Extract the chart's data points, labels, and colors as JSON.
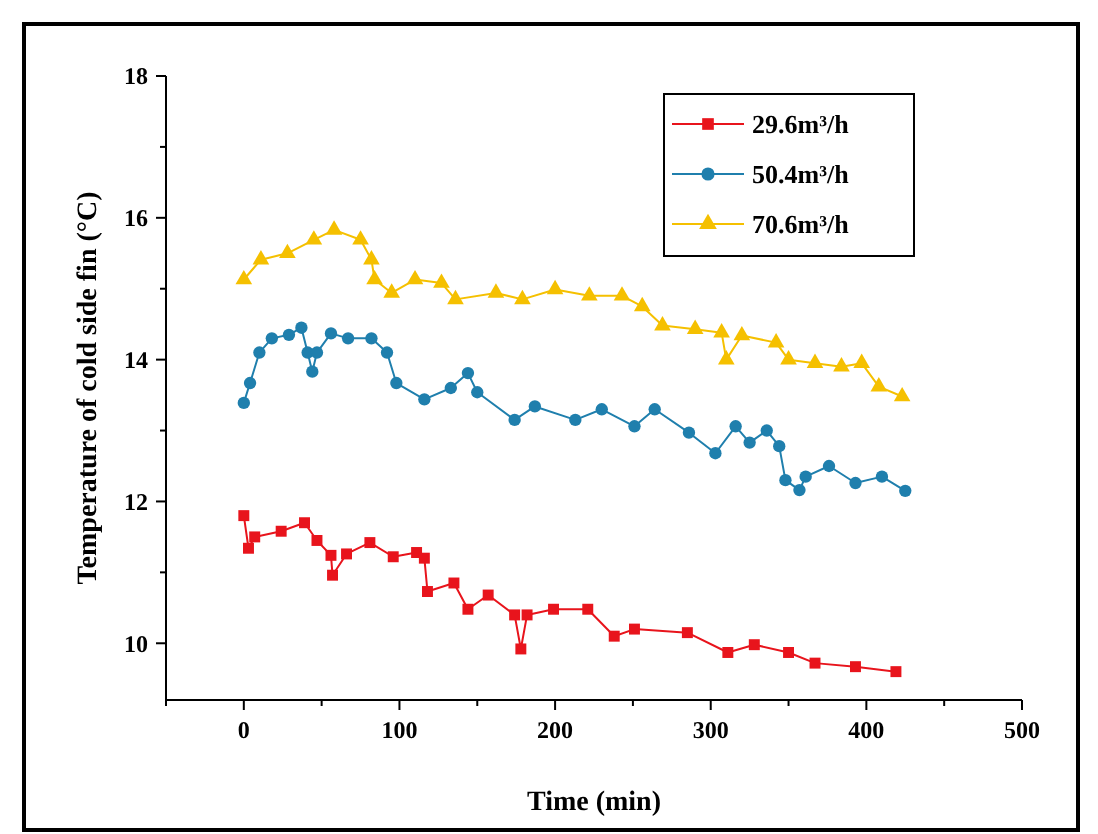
{
  "chart_data": {
    "type": "line",
    "xlabel": "Time (min)",
    "ylabel": "Temperature of cold side fin (°C)",
    "xlim": [
      -50,
      500
    ],
    "ylim": [
      9.2,
      18
    ],
    "xticks": [
      {
        "value": -50,
        "label": null
      },
      0,
      {
        "value": 50,
        "label": null
      },
      100,
      {
        "value": 150,
        "label": null
      },
      200,
      {
        "value": 250,
        "label": null
      },
      300,
      {
        "value": 350,
        "label": null
      },
      400,
      {
        "value": 450,
        "label": null
      },
      500
    ],
    "yticks": [
      10,
      {
        "value": 11,
        "label": null
      },
      12,
      {
        "value": 13,
        "label": null
      },
      14,
      {
        "value": 15,
        "label": null
      },
      16,
      {
        "value": 17,
        "label": null
      },
      18
    ],
    "grid": false,
    "legend": "top right",
    "line_style": "solid",
    "series": [
      {
        "name": "29.6m³/h",
        "color": "#e8141c",
        "marker": "square",
        "x": [
          0,
          3,
          7,
          24,
          39,
          47,
          56,
          57,
          66,
          81,
          96,
          111,
          116,
          118,
          135,
          144,
          157,
          174,
          178,
          182,
          199,
          221,
          238,
          251,
          285,
          311,
          328,
          350,
          367,
          393,
          419
        ],
        "values": [
          11.8,
          11.34,
          11.5,
          11.58,
          11.7,
          11.45,
          11.24,
          10.96,
          11.26,
          11.42,
          11.22,
          11.28,
          11.2,
          10.73,
          10.85,
          10.48,
          10.68,
          10.4,
          9.92,
          10.4,
          10.48,
          10.48,
          10.1,
          10.2,
          10.15,
          9.87,
          9.98,
          9.87,
          9.72,
          9.67,
          9.6
        ]
      },
      {
        "name": "50.4m³/h",
        "color": "#1f7fad",
        "marker": "circle",
        "x": [
          0,
          4,
          10,
          18,
          29,
          37,
          41,
          44,
          47,
          56,
          67,
          82,
          92,
          98,
          116,
          133,
          144,
          150,
          174,
          187,
          213,
          230,
          251,
          264,
          286,
          303,
          316,
          325,
          336,
          344,
          348,
          357,
          361,
          376,
          393,
          410,
          425
        ],
        "values": [
          13.39,
          13.67,
          14.1,
          14.3,
          14.35,
          14.45,
          14.1,
          13.83,
          14.1,
          14.37,
          14.3,
          14.3,
          14.1,
          13.67,
          13.44,
          13.6,
          13.81,
          13.54,
          13.15,
          13.34,
          13.15,
          13.3,
          13.06,
          13.3,
          12.97,
          12.68,
          13.06,
          12.83,
          13.0,
          12.78,
          12.3,
          12.16,
          12.35,
          12.5,
          12.26,
          12.35,
          12.15
        ]
      },
      {
        "name": "70.6m³/h",
        "color": "#f5c000",
        "marker": "triangle",
        "x": [
          0,
          11,
          28,
          45,
          58,
          75,
          82,
          84,
          95,
          110,
          127,
          136,
          162,
          179,
          200,
          222,
          243,
          256,
          269,
          290,
          307,
          310,
          320,
          342,
          350,
          367,
          384,
          397,
          408,
          423
        ],
        "values": [
          15.13,
          15.41,
          15.5,
          15.69,
          15.83,
          15.69,
          15.41,
          15.13,
          14.94,
          15.13,
          15.08,
          14.85,
          14.94,
          14.85,
          14.99,
          14.9,
          14.9,
          14.75,
          14.48,
          14.43,
          14.38,
          14.0,
          14.34,
          14.24,
          14.0,
          13.95,
          13.9,
          13.95,
          13.62,
          13.48
        ]
      }
    ]
  }
}
